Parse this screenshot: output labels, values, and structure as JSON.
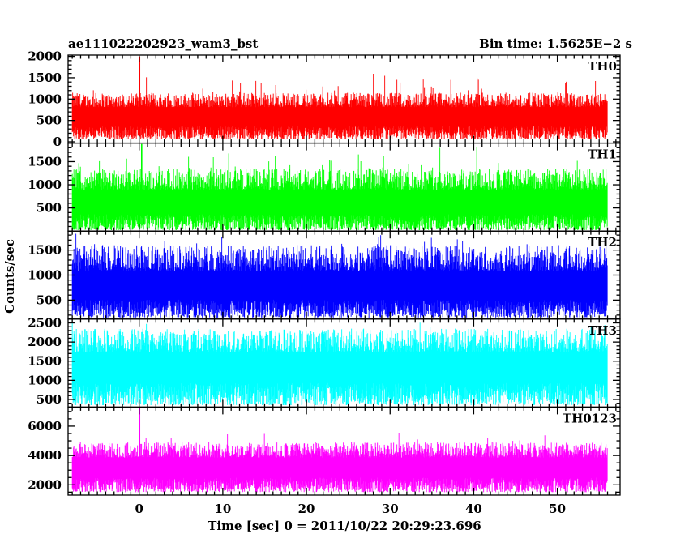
{
  "header": {
    "obs_id": "ae111022202923_wam3_bst",
    "bin_time": "Bin time: 1.5625E−2 s"
  },
  "axes": {
    "ylabel": "Counts/sec",
    "xlabel": "Time [sec] 0 = 2011/10/22 20:29:23.696"
  },
  "chart_data": {
    "type": "line",
    "xlim": [
      -8.5,
      57.5
    ],
    "x_ticks": [
      0,
      10,
      20,
      30,
      40,
      50
    ],
    "x_range": [
      -8,
      56
    ],
    "bin_time_s": 0.015625,
    "panels": [
      {
        "name": "TH0",
        "color": "#ff0000",
        "ylim": [
          -30,
          2030
        ],
        "yticks": [
          0,
          500,
          1000,
          1500,
          2000
        ],
        "yminor": 100,
        "baseline": 630,
        "low": 60,
        "typ_high": 1150,
        "peak_high": 1700,
        "spikes": [
          {
            "x": 0.05,
            "y": 2000
          }
        ]
      },
      {
        "name": "TH1",
        "color": "#00ff00",
        "ylim": [
          0,
          1900
        ],
        "yticks": [
          500,
          1000,
          1500
        ],
        "yminor": 100,
        "baseline": 640,
        "low": 20,
        "typ_high": 1350,
        "peak_high": 1850,
        "spikes": [
          {
            "x": 0.3,
            "y": 1880
          }
        ]
      },
      {
        "name": "TH2",
        "color": "#0000ff",
        "ylim": [
          120,
          1880
        ],
        "yticks": [
          500,
          1000,
          1500
        ],
        "yminor": 100,
        "baseline": 800,
        "low": 150,
        "typ_high": 1600,
        "peak_high": 1850,
        "spikes": []
      },
      {
        "name": "TH3",
        "color": "#00ffff",
        "ylim": [
          300,
          2600
        ],
        "yticks": [
          500,
          1000,
          1500,
          2000,
          2500
        ],
        "yminor": 100,
        "baseline": 1400,
        "low": 350,
        "typ_high": 2350,
        "peak_high": 2600,
        "spikes": []
      },
      {
        "name": "TH0123",
        "color": "#ff00ff",
        "ylim": [
          1300,
          7300
        ],
        "yticks": [
          2000,
          4000,
          6000
        ],
        "yminor": 500,
        "baseline": 3300,
        "low": 1500,
        "typ_high": 4900,
        "peak_high": 5600,
        "spikes": [
          {
            "x": 0.05,
            "y": 7300
          }
        ]
      }
    ]
  }
}
